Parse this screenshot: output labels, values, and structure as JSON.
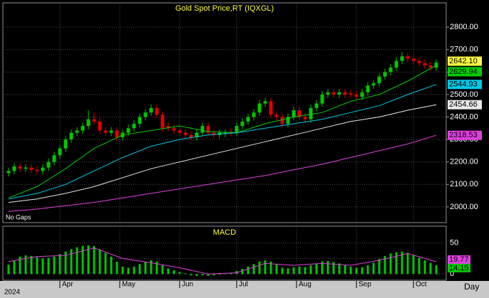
{
  "chart_data": {
    "type": "candlestick",
    "title": "Gold  Spot  Price,RT  (IQXGL)",
    "note": "No Gaps",
    "year": "2024",
    "x_unit": "Day",
    "xlim": [
      -1,
      76.75
    ],
    "xticks": [
      {
        "value": 9,
        "label": "Apr"
      },
      {
        "value": 19.5,
        "label": "May"
      },
      {
        "value": 30,
        "label": "Jun"
      },
      {
        "value": 40,
        "label": "Jul"
      },
      {
        "value": 50.5,
        "label": "Aug"
      },
      {
        "value": 61,
        "label": "Sep"
      },
      {
        "value": 71,
        "label": "Oct"
      }
    ],
    "ylim": [
      1930,
      2908
    ],
    "yticks": [
      {
        "value": 2000,
        "label": "2000.00"
      },
      {
        "value": 2100,
        "label": "2100.00"
      },
      {
        "value": 2200,
        "label": "2200.00"
      },
      {
        "value": 2300,
        "label": "2300.00"
      },
      {
        "value": 2400,
        "label": "2400.00"
      },
      {
        "value": 2500,
        "label": "2500.00"
      },
      {
        "value": 2600,
        "label": "2600.00"
      },
      {
        "value": 2700,
        "label": "2700.00"
      },
      {
        "value": 2800,
        "label": "2800.00"
      }
    ],
    "grid": true,
    "up_color": "#00c800",
    "down_color": "#e00000",
    "open": [
      2150,
      2160,
      2180,
      2170,
      2175,
      2165,
      2160,
      2175,
      2200,
      2230,
      2260,
      2300,
      2330,
      2340,
      2360,
      2390,
      2380,
      2340,
      2330,
      2340,
      2310,
      2330,
      2350,
      2370,
      2400,
      2420,
      2440,
      2410,
      2360,
      2350,
      2340,
      2330,
      2320,
      2310,
      2330,
      2360,
      2330,
      2320,
      2325,
      2335,
      2330,
      2360,
      2380,
      2400,
      2420,
      2460,
      2470,
      2410,
      2400,
      2370,
      2400,
      2430,
      2400,
      2390,
      2440,
      2460,
      2500,
      2510,
      2500,
      2510,
      2505,
      2500,
      2490,
      2510,
      2540,
      2550,
      2580,
      2600,
      2620,
      2650,
      2670,
      2660,
      2650,
      2640,
      2630,
      2620
    ],
    "high": [
      2175,
      2195,
      2195,
      2190,
      2190,
      2180,
      2190,
      2215,
      2245,
      2275,
      2315,
      2345,
      2355,
      2375,
      2430,
      2420,
      2395,
      2355,
      2355,
      2355,
      2345,
      2365,
      2385,
      2415,
      2435,
      2455,
      2455,
      2425,
      2375,
      2365,
      2355,
      2345,
      2335,
      2345,
      2375,
      2375,
      2345,
      2345,
      2345,
      2350,
      2375,
      2395,
      2415,
      2435,
      2475,
      2485,
      2485,
      2425,
      2415,
      2415,
      2445,
      2445,
      2415,
      2455,
      2475,
      2515,
      2525,
      2525,
      2525,
      2525,
      2520,
      2515,
      2525,
      2555,
      2565,
      2595,
      2615,
      2635,
      2665,
      2690,
      2685,
      2675,
      2665,
      2655,
      2645,
      2655
    ],
    "low": [
      2135,
      2145,
      2155,
      2155,
      2150,
      2145,
      2145,
      2160,
      2185,
      2215,
      2245,
      2285,
      2315,
      2325,
      2345,
      2365,
      2325,
      2315,
      2315,
      2290,
      2295,
      2315,
      2335,
      2355,
      2385,
      2405,
      2395,
      2335,
      2335,
      2325,
      2315,
      2305,
      2295,
      2295,
      2315,
      2315,
      2305,
      2305,
      2310,
      2315,
      2315,
      2345,
      2365,
      2385,
      2405,
      2445,
      2395,
      2385,
      2355,
      2355,
      2385,
      2385,
      2375,
      2375,
      2425,
      2445,
      2485,
      2485,
      2485,
      2485,
      2485,
      2475,
      2475,
      2495,
      2525,
      2535,
      2565,
      2585,
      2605,
      2635,
      2645,
      2635,
      2625,
      2615,
      2605,
      2605
    ],
    "close": [
      2160,
      2180,
      2170,
      2175,
      2165,
      2160,
      2175,
      2200,
      2230,
      2260,
      2300,
      2330,
      2340,
      2360,
      2390,
      2380,
      2340,
      2330,
      2340,
      2310,
      2330,
      2350,
      2370,
      2400,
      2420,
      2440,
      2410,
      2350,
      2350,
      2340,
      2330,
      2320,
      2310,
      2330,
      2360,
      2330,
      2320,
      2330,
      2330,
      2330,
      2360,
      2380,
      2400,
      2420,
      2460,
      2470,
      2410,
      2400,
      2370,
      2400,
      2430,
      2400,
      2390,
      2440,
      2460,
      2500,
      2510,
      2500,
      2510,
      2500,
      2500,
      2490,
      2510,
      2540,
      2550,
      2580,
      2600,
      2620,
      2650,
      2670,
      2660,
      2650,
      2640,
      2630,
      2620,
      2642.1
    ],
    "ma_x": [
      0,
      5,
      10,
      15,
      20,
      25,
      30,
      35,
      40,
      45,
      50,
      55,
      60,
      65,
      70,
      75
    ],
    "series": [
      {
        "color": "#00d000",
        "values": [
          2040,
          2090,
          2170,
          2260,
          2320,
          2340,
          2360,
          2335,
          2330,
          2370,
          2400,
          2420,
          2470,
          2500,
          2560,
          2629.94
        ]
      },
      {
        "color": "#00c8e8",
        "values": [
          2035,
          2060,
          2100,
          2160,
          2220,
          2270,
          2300,
          2320,
          2330,
          2350,
          2370,
          2390,
          2420,
          2450,
          2500,
          2544.93
        ]
      },
      {
        "color": "#e8e8e8",
        "values": [
          2020,
          2035,
          2060,
          2090,
          2130,
          2170,
          2200,
          2230,
          2260,
          2290,
          2320,
          2350,
          2380,
          2400,
          2430,
          2454.66
        ]
      },
      {
        "color": "#e040e0",
        "values": [
          1980,
          1990,
          2005,
          2020,
          2040,
          2060,
          2080,
          2100,
          2120,
          2140,
          2165,
          2190,
          2220,
          2250,
          2280,
          2318.53
        ]
      }
    ],
    "price_labels": [
      {
        "value": 2642.1,
        "label": "2642.10",
        "color": "#ffff40"
      },
      {
        "value": 2629.94,
        "label": "2629.94",
        "color": "#00d000"
      },
      {
        "value": 2544.93,
        "label": "2544.93",
        "color": "#00c8e8"
      },
      {
        "value": 2454.66,
        "label": "2454.66",
        "color": "#e8e8e8"
      },
      {
        "value": 2318.53,
        "label": "2318.53",
        "color": "#e040e0"
      }
    ],
    "macd": {
      "title": "MACD",
      "ylim": [
        -10,
        77
      ],
      "yticks": [
        0,
        25,
        50
      ],
      "color": "#00c800",
      "values": [
        15,
        22,
        28,
        30,
        29,
        27,
        25,
        26,
        28,
        32,
        36,
        40,
        43,
        45,
        46,
        45,
        40,
        34,
        28,
        20,
        12,
        10,
        12,
        16,
        20,
        22,
        20,
        14,
        9,
        6,
        3,
        1,
        -2,
        -3,
        -2,
        -3,
        -2,
        -1,
        0,
        2,
        5,
        8,
        12,
        16,
        20,
        22,
        20,
        15,
        10,
        9,
        11,
        12,
        11,
        14,
        17,
        20,
        21,
        19,
        17,
        14,
        12,
        10,
        11,
        14,
        18,
        24,
        29,
        33,
        35,
        36,
        34,
        30,
        26,
        22,
        18,
        14.15
      ],
      "signal": {
        "color": "#e040e0",
        "x": [
          0,
          5,
          10,
          15,
          20,
          25,
          30,
          35,
          40,
          45,
          50,
          55,
          60,
          65,
          70,
          75
        ],
        "values": [
          20,
          28,
          30,
          42,
          25,
          18,
          10,
          0,
          2,
          17,
          14,
          17,
          14,
          22,
          33,
          19.77
        ]
      },
      "labels": [
        {
          "value": 19.77,
          "label": "19.77",
          "color": "#e040e0"
        },
        {
          "value": 14.15,
          "label": "14.15",
          "color": "#00c800"
        }
      ]
    }
  }
}
